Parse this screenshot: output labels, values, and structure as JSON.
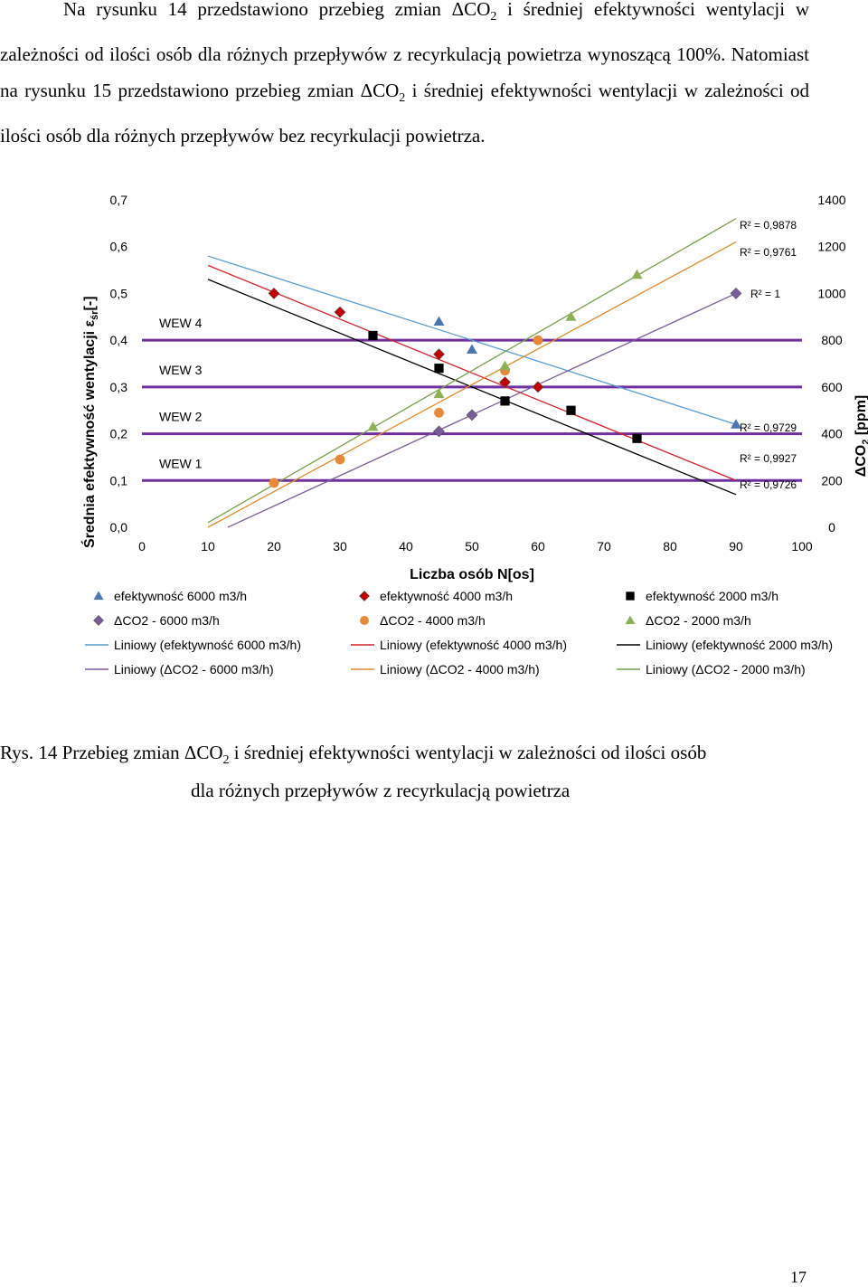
{
  "paragraph": {
    "p1": "Na rysunku 14 przedstawiono przebieg zmian ΔCO",
    "p1_sub": "2",
    "p2": " i średniej efektywności wentylacji w zależności od ilości osób dla różnych przepływów z recyrkulacją powietrza wynoszącą 100%. Natomiast na rysunku 15 przedstawiono przebieg zmian ΔCO",
    "p2_sub": "2",
    "p3": " i średniej efektywności wentylacji w zależności od ilości osób dla różnych przepływów bez recyrkulacji powietrza."
  },
  "caption": {
    "line1": "Rys. 14 Przebieg zmian ΔCO",
    "line1_sub": "2",
    "line1_rest": " i średniej efektywności wentylacji  w zależności od ilości osób",
    "line2": "dla różnych przepływów z recyrkulacją powietrza"
  },
  "page_number": "17",
  "chart_data": {
    "type": "scatter",
    "xlabel": "Liczba osób  N[os]",
    "ylabel_left": "Średnia efektywność wentylacji ε",
    "ylabel_left_sub": "śr",
    "ylabel_left_suffix": "[-]",
    "ylabel_right": "ΔCO",
    "ylabel_right_sub": "2",
    "ylabel_right_suffix": " [ppm]",
    "xlim": [
      0,
      100
    ],
    "ylim_left": [
      0,
      0.7
    ],
    "ylim_right": [
      0,
      1400
    ],
    "x_ticks": [
      "0",
      "10",
      "20",
      "30",
      "40",
      "50",
      "60",
      "70",
      "80",
      "90",
      "100"
    ],
    "y_left_ticks": [
      "0,0",
      "0,1",
      "0,2",
      "0,3",
      "0,4",
      "0,5",
      "0,6",
      "0,7"
    ],
    "y_right_ticks": [
      "0",
      "200",
      "400",
      "600",
      "800",
      "1000",
      "1200",
      "1400"
    ],
    "reference_lines": [
      {
        "label": "WEW 4",
        "value": 0.4
      },
      {
        "label": "WEW 3",
        "value": 0.3
      },
      {
        "label": "WEW 2",
        "value": 0.2
      },
      {
        "label": "WEW 1",
        "value": 0.1
      }
    ],
    "reference_color": "#7030a0",
    "series": [
      {
        "name": "efektywność 6000 m3/h",
        "axis": "left",
        "marker": "triangle",
        "color": "#4a77b4",
        "x": [
          45,
          50,
          90
        ],
        "y": [
          0.44,
          0.38,
          0.22
        ]
      },
      {
        "name": "efektywność 4000 m3/h",
        "axis": "left",
        "marker": "diamond",
        "color": "#c00000",
        "x": [
          20,
          30,
          45,
          55,
          60
        ],
        "y": [
          0.5,
          0.46,
          0.37,
          0.31,
          0.3
        ]
      },
      {
        "name": "efektywność 2000 m3/h",
        "axis": "left",
        "marker": "square",
        "color": "#000000",
        "x": [
          35,
          45,
          55,
          65,
          75
        ],
        "y": [
          0.41,
          0.34,
          0.27,
          0.25,
          0.19
        ]
      },
      {
        "name": "ΔCO2 - 6000 m3/h",
        "axis": "right",
        "marker": "diamond",
        "color": "#7a5b9a",
        "x": [
          45,
          50,
          90
        ],
        "y": [
          410,
          480,
          1000
        ]
      },
      {
        "name": "ΔCO2 - 4000 m3/h",
        "axis": "right",
        "marker": "circle",
        "color": "#e8893a",
        "x": [
          20,
          30,
          45,
          55,
          60
        ],
        "y": [
          190,
          290,
          490,
          670,
          800
        ]
      },
      {
        "name": "ΔCO2 - 2000 m3/h",
        "axis": "right",
        "marker": "triangle",
        "color": "#8db255",
        "x": [
          35,
          45,
          55,
          65,
          75
        ],
        "y": [
          430,
          570,
          690,
          900,
          1080
        ]
      }
    ],
    "trendlines": [
      {
        "name": "Liniowy (efektywność 6000 m3/h)",
        "axis": "left",
        "color": "#5b9bd5",
        "x": [
          10,
          90
        ],
        "y": [
          0.58,
          0.22
        ],
        "r2": "R² = 0,9729"
      },
      {
        "name": "Liniowy (efektywność 4000 m3/h)",
        "axis": "left",
        "color": "#d4202a",
        "x": [
          10,
          90
        ],
        "y": [
          0.56,
          0.1
        ],
        "r2": "R² = 0,9927"
      },
      {
        "name": "Liniowy (efektywność 2000 m3/h)",
        "axis": "left",
        "color": "#000000",
        "x": [
          10,
          90
        ],
        "y": [
          0.53,
          0.07
        ],
        "r2": "R² = 0,9726"
      },
      {
        "name": "Liniowy (ΔCO2 - 6000 m3/h)",
        "axis": "right",
        "color": "#7a5b9a",
        "x": [
          13,
          90
        ],
        "y": [
          0,
          1000
        ],
        "r2": "R² = 1"
      },
      {
        "name": "Liniowy (ΔCO2 - 4000 m3/h)",
        "axis": "right",
        "color": "#e38b2c",
        "x": [
          10,
          90
        ],
        "y": [
          0,
          1220
        ],
        "r2": "R² = 0,9761"
      },
      {
        "name": "Liniowy (ΔCO2 - 2000 m3/h)",
        "axis": "right",
        "color": "#77a04b",
        "x": [
          10,
          90
        ],
        "y": [
          20,
          1320
        ],
        "r2": "R² = 0,9878"
      }
    ]
  }
}
